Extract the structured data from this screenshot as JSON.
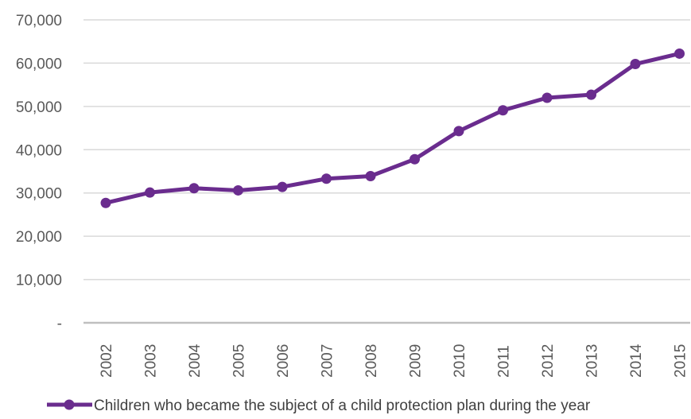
{
  "chart_data": {
    "type": "line",
    "x": [
      "2002",
      "2003",
      "2004",
      "2005",
      "2006",
      "2007",
      "2008",
      "2009",
      "2010",
      "2011",
      "2012",
      "2013",
      "2014",
      "2015"
    ],
    "series": [
      {
        "name": "Children who became the subject of a child protection plan during the year",
        "values": [
          27700,
          30100,
          31100,
          30600,
          31400,
          33300,
          33900,
          37800,
          44300,
          49100,
          52000,
          52700,
          59800,
          62200
        ],
        "color": "#6a2c8e"
      }
    ],
    "y_ticks": [
      "-",
      "10,000",
      "20,000",
      "30,000",
      "40,000",
      "50,000",
      "60,000",
      "70,000"
    ],
    "ylim": [
      0,
      70000
    ],
    "grid": true,
    "legend": "bottom",
    "title": "",
    "xlabel": "",
    "ylabel": ""
  }
}
